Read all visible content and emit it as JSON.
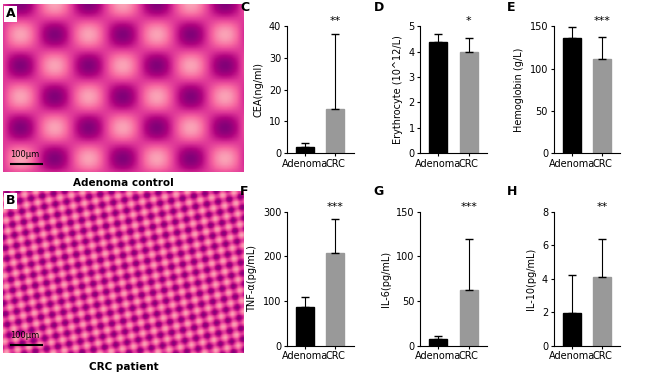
{
  "images": [
    {
      "panel": "A",
      "caption": "Adenoma control",
      "scale_bar": "100μm"
    },
    {
      "panel": "B",
      "caption": "CRC patient",
      "scale_bar": "100μm"
    }
  ],
  "chart_data": [
    {
      "type": "bar",
      "panel": "C",
      "y_label": "CEA(ng/ml)",
      "categories": [
        "Adenoma",
        "CRC"
      ],
      "values": [
        1.8,
        14
      ],
      "errors": [
        1.3,
        23.5
      ],
      "colors": [
        "#000000",
        "#999999"
      ],
      "ylim": [
        0,
        40
      ],
      "yticks": [
        0,
        10,
        20,
        30,
        40
      ],
      "annotation": "**"
    },
    {
      "type": "bar",
      "panel": "D",
      "y_label": "Erythrocyte (10^12/L)",
      "categories": [
        "Adenoma",
        "CRC"
      ],
      "values": [
        4.4,
        4.0
      ],
      "errors": [
        0.3,
        0.55
      ],
      "colors": [
        "#000000",
        "#999999"
      ],
      "ylim": [
        0,
        5
      ],
      "yticks": [
        0,
        1,
        2,
        3,
        4,
        5
      ],
      "annotation": "*"
    },
    {
      "type": "bar",
      "panel": "E",
      "y_label": "Hemoglobin (g/L)",
      "categories": [
        "Adenoma",
        "CRC"
      ],
      "values": [
        136,
        112
      ],
      "errors": [
        13,
        26
      ],
      "colors": [
        "#000000",
        "#999999"
      ],
      "ylim": [
        0,
        150
      ],
      "yticks": [
        0,
        50,
        100,
        150
      ],
      "annotation": "***"
    },
    {
      "type": "bar",
      "panel": "F",
      "y_label": "TNF-α(pg/mL)",
      "categories": [
        "Adenoma",
        "CRC"
      ],
      "values": [
        88,
        208
      ],
      "errors": [
        22,
        75
      ],
      "colors": [
        "#000000",
        "#999999"
      ],
      "ylim": [
        0,
        300
      ],
      "yticks": [
        0,
        100,
        200,
        300
      ],
      "annotation": "***"
    },
    {
      "type": "bar",
      "panel": "G",
      "y_label": "IL-6(pg/mL)",
      "categories": [
        "Adenoma",
        "CRC"
      ],
      "values": [
        8,
        63
      ],
      "errors": [
        3,
        57
      ],
      "colors": [
        "#000000",
        "#999999"
      ],
      "ylim": [
        0,
        150
      ],
      "yticks": [
        0,
        50,
        100,
        150
      ],
      "annotation": "***"
    },
    {
      "type": "bar",
      "panel": "H",
      "y_label": "IL-10(pg/mL)",
      "categories": [
        "Adenoma",
        "CRC"
      ],
      "values": [
        1.95,
        4.1
      ],
      "errors": [
        2.25,
        2.25
      ],
      "colors": [
        "#000000",
        "#999999"
      ],
      "ylim": [
        0,
        8
      ],
      "yticks": [
        0,
        2,
        4,
        6,
        8
      ],
      "annotation": "**"
    }
  ]
}
